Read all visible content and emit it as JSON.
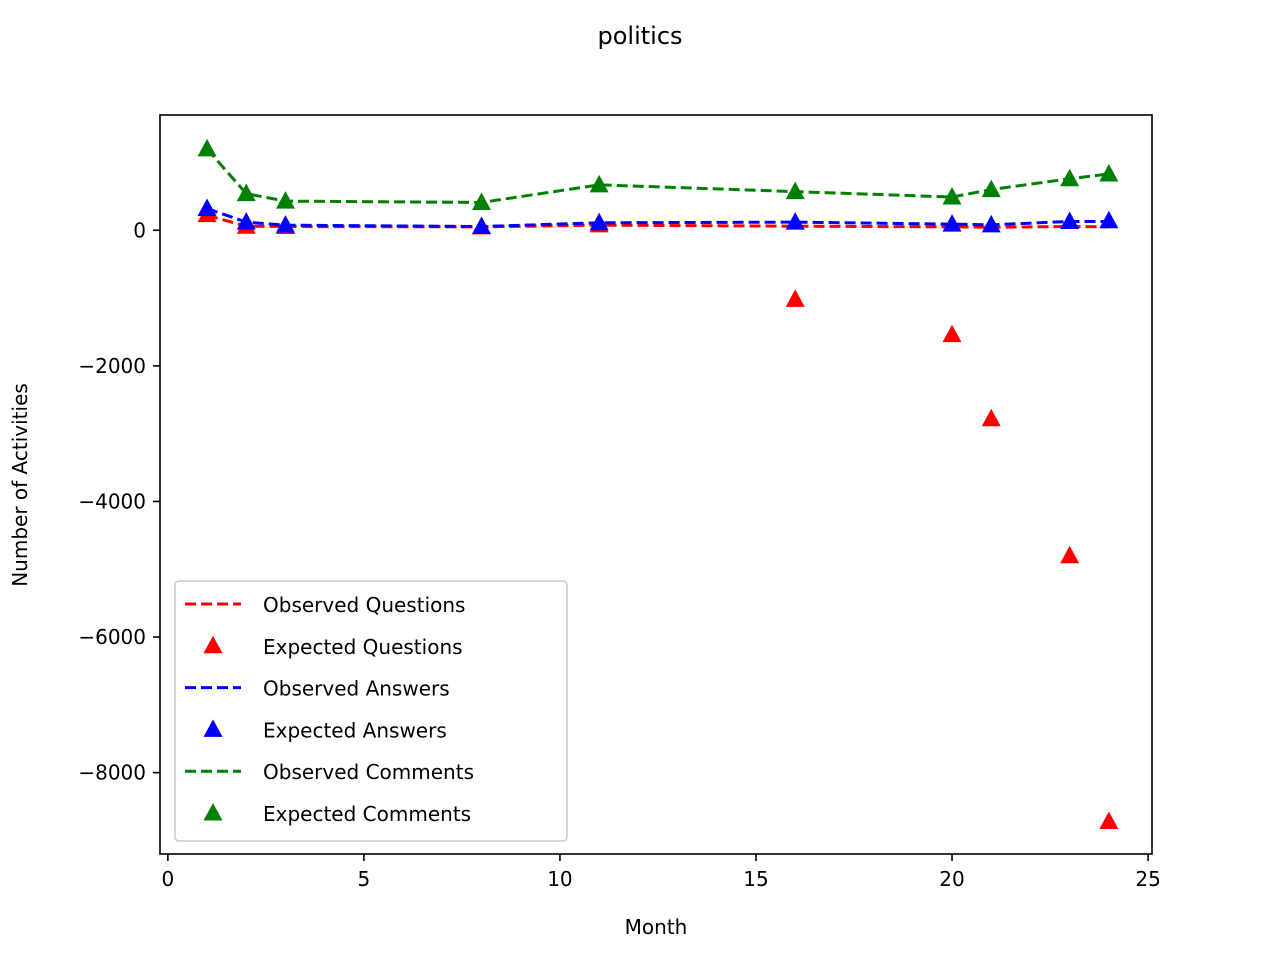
{
  "chart_data": {
    "type": "line",
    "title": "politics",
    "xlabel": "Month",
    "ylabel": "Number of Activities",
    "xlim": [
      -0.2,
      25.1
    ],
    "ylim": [
      -9200,
      1700
    ],
    "xticks": [
      0,
      5,
      10,
      15,
      20,
      25
    ],
    "xtick_labels": [
      "0",
      "5",
      "10",
      "15",
      "20",
      "25"
    ],
    "yticks": [
      0,
      -2000,
      -4000,
      -6000,
      -8000
    ],
    "ytick_labels": [
      "0",
      "−2000",
      "−4000",
      "−6000",
      "−8000"
    ],
    "grid": false,
    "legend_position": "lower-left",
    "x": [
      1,
      2,
      3,
      8,
      11,
      16,
      20,
      21,
      23,
      24
    ],
    "series": [
      {
        "name": "Observed Questions",
        "style": "dashed-line",
        "color": "#ff0000",
        "values": [
          220,
          60,
          55,
          50,
          75,
          60,
          50,
          45,
          55,
          50
        ]
      },
      {
        "name": "Expected Questions",
        "style": "triangle-marker",
        "color": "#ff0000",
        "values": [
          230,
          60,
          55,
          50,
          80,
          -1020,
          -1540,
          -2780,
          -4800,
          -8720
        ]
      },
      {
        "name": "Observed Answers",
        "style": "dashed-line",
        "color": "#0000ff",
        "values": [
          320,
          120,
          75,
          55,
          110,
          120,
          90,
          80,
          130,
          130
        ]
      },
      {
        "name": "Expected Answers",
        "style": "triangle-marker",
        "color": "#0000ff",
        "values": [
          320,
          120,
          75,
          55,
          110,
          120,
          90,
          80,
          130,
          140
        ]
      },
      {
        "name": "Observed Comments",
        "style": "dashed-line",
        "color": "#008000",
        "values": [
          1200,
          540,
          430,
          410,
          670,
          570,
          490,
          600,
          760,
          830
        ]
      },
      {
        "name": "Expected Comments",
        "style": "triangle-marker",
        "color": "#008000",
        "values": [
          1200,
          540,
          430,
          410,
          670,
          570,
          490,
          600,
          760,
          830
        ]
      }
    ]
  }
}
